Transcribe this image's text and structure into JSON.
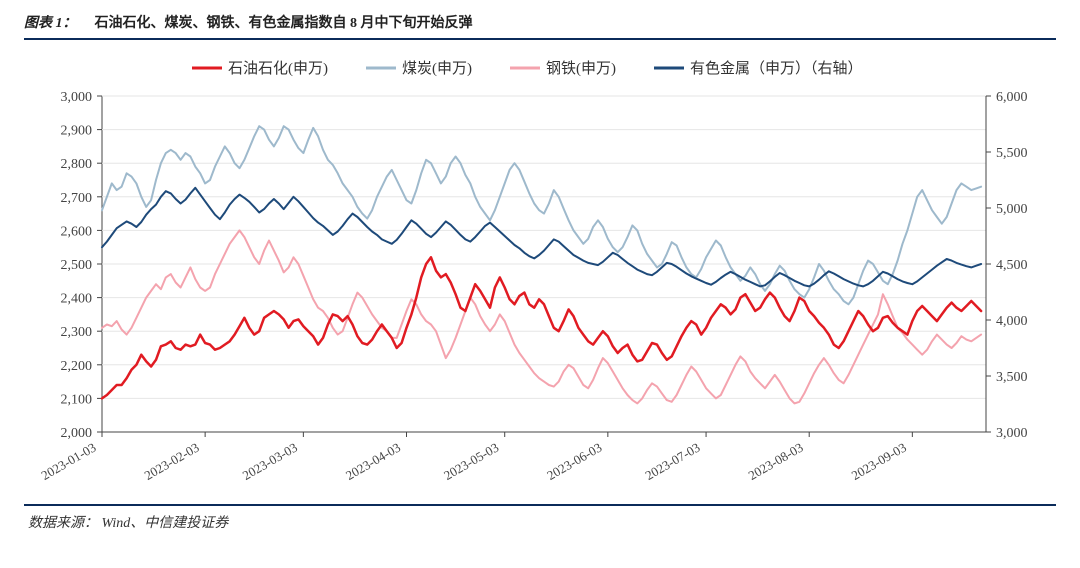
{
  "figure_label": "图表 1：",
  "title": "石油石化、煤炭、钢铁、有色金属指数自 8 月中下旬开始反弹",
  "source_label": "数据来源：",
  "source_value": "Wind、中信建投证券",
  "chart": {
    "type": "line",
    "background_color": "#ffffff",
    "grid_color": "#e6e6e6",
    "axis_color": "#444444",
    "title_fontsize": 16,
    "label_fontsize": 14,
    "xlim": [
      0,
      180
    ],
    "left_axis": {
      "min": 2000,
      "max": 3000,
      "step": 100,
      "label": ""
    },
    "right_axis": {
      "min": 3000,
      "max": 6000,
      "step": 500,
      "label": ""
    },
    "x_ticks": [
      {
        "i": 0,
        "label": "2023-01-03"
      },
      {
        "i": 21,
        "label": "2023-02-03"
      },
      {
        "i": 41,
        "label": "2023-03-03"
      },
      {
        "i": 62,
        "label": "2023-04-03"
      },
      {
        "i": 82,
        "label": "2023-05-03"
      },
      {
        "i": 103,
        "label": "2023-06-03"
      },
      {
        "i": 123,
        "label": "2023-07-03"
      },
      {
        "i": 144,
        "label": "2023-08-03"
      },
      {
        "i": 165,
        "label": "2023-09-03"
      }
    ],
    "legend": {
      "position": "top-center",
      "items": [
        {
          "key": "petro",
          "label": "石油石化(申万)"
        },
        {
          "key": "coal",
          "label": "煤炭(申万)"
        },
        {
          "key": "steel",
          "label": "钢铁(申万)"
        },
        {
          "key": "nfm",
          "label": "有色金属（申万）（右轴）"
        }
      ]
    },
    "series": {
      "petro": {
        "name": "石油石化(申万)",
        "axis": "left",
        "color": "#e11b22",
        "line_width": 2.5,
        "values": [
          2100,
          2110,
          2125,
          2140,
          2140,
          2160,
          2185,
          2200,
          2230,
          2210,
          2195,
          2215,
          2255,
          2260,
          2270,
          2250,
          2245,
          2260,
          2255,
          2260,
          2290,
          2265,
          2260,
          2245,
          2250,
          2260,
          2270,
          2290,
          2315,
          2340,
          2310,
          2290,
          2300,
          2340,
          2350,
          2360,
          2350,
          2335,
          2310,
          2330,
          2335,
          2315,
          2300,
          2285,
          2260,
          2280,
          2320,
          2350,
          2345,
          2330,
          2345,
          2320,
          2285,
          2265,
          2260,
          2275,
          2300,
          2320,
          2300,
          2280,
          2250,
          2265,
          2310,
          2350,
          2400,
          2460,
          2500,
          2520,
          2480,
          2460,
          2470,
          2445,
          2410,
          2370,
          2360,
          2400,
          2440,
          2420,
          2395,
          2370,
          2430,
          2460,
          2430,
          2395,
          2380,
          2405,
          2415,
          2380,
          2370,
          2395,
          2380,
          2345,
          2310,
          2300,
          2330,
          2365,
          2345,
          2310,
          2290,
          2270,
          2260,
          2280,
          2300,
          2285,
          2255,
          2235,
          2250,
          2260,
          2230,
          2210,
          2215,
          2240,
          2265,
          2260,
          2235,
          2215,
          2225,
          2255,
          2285,
          2310,
          2330,
          2320,
          2290,
          2310,
          2340,
          2360,
          2380,
          2370,
          2350,
          2365,
          2400,
          2410,
          2385,
          2360,
          2370,
          2395,
          2415,
          2400,
          2370,
          2345,
          2330,
          2360,
          2400,
          2390,
          2360,
          2345,
          2325,
          2310,
          2290,
          2260,
          2250,
          2270,
          2300,
          2330,
          2360,
          2345,
          2320,
          2300,
          2310,
          2340,
          2345,
          2325,
          2310,
          2300,
          2290,
          2330,
          2360,
          2375,
          2360,
          2345,
          2330,
          2350,
          2370,
          2385,
          2370,
          2360,
          2375,
          2390,
          2375,
          2360
        ]
      },
      "coal": {
        "name": "煤炭(申万)",
        "axis": "left",
        "color": "#9eb9cc",
        "line_width": 2.0,
        "values": [
          2660,
          2700,
          2740,
          2720,
          2730,
          2770,
          2760,
          2740,
          2700,
          2670,
          2690,
          2750,
          2800,
          2830,
          2840,
          2830,
          2810,
          2830,
          2820,
          2790,
          2770,
          2740,
          2750,
          2790,
          2820,
          2850,
          2830,
          2800,
          2785,
          2810,
          2845,
          2880,
          2910,
          2900,
          2870,
          2850,
          2875,
          2910,
          2900,
          2870,
          2845,
          2830,
          2870,
          2905,
          2880,
          2840,
          2810,
          2795,
          2770,
          2740,
          2720,
          2700,
          2670,
          2650,
          2635,
          2660,
          2700,
          2730,
          2760,
          2780,
          2750,
          2720,
          2690,
          2680,
          2720,
          2770,
          2810,
          2800,
          2770,
          2740,
          2760,
          2800,
          2820,
          2800,
          2765,
          2740,
          2700,
          2670,
          2650,
          2630,
          2660,
          2700,
          2740,
          2780,
          2800,
          2780,
          2745,
          2710,
          2680,
          2660,
          2650,
          2680,
          2720,
          2700,
          2665,
          2630,
          2600,
          2580,
          2560,
          2575,
          2610,
          2630,
          2610,
          2575,
          2550,
          2535,
          2550,
          2580,
          2615,
          2600,
          2560,
          2530,
          2510,
          2490,
          2500,
          2530,
          2565,
          2555,
          2520,
          2490,
          2470,
          2460,
          2485,
          2520,
          2545,
          2570,
          2555,
          2520,
          2490,
          2470,
          2450,
          2465,
          2490,
          2470,
          2440,
          2420,
          2440,
          2470,
          2495,
          2480,
          2450,
          2425,
          2410,
          2400,
          2425,
          2460,
          2500,
          2480,
          2450,
          2425,
          2410,
          2390,
          2380,
          2400,
          2440,
          2480,
          2510,
          2500,
          2475,
          2450,
          2440,
          2470,
          2510,
          2560,
          2600,
          2650,
          2700,
          2720,
          2690,
          2660,
          2640,
          2620,
          2640,
          2680,
          2720,
          2740,
          2730,
          2720,
          2725,
          2730
        ]
      },
      "steel": {
        "name": "钢铁(申万)",
        "axis": "left",
        "color": "#f4a3ae",
        "line_width": 2.0,
        "values": [
          2310,
          2320,
          2315,
          2330,
          2305,
          2290,
          2310,
          2340,
          2370,
          2400,
          2420,
          2440,
          2425,
          2460,
          2470,
          2445,
          2430,
          2460,
          2490,
          2455,
          2430,
          2420,
          2430,
          2470,
          2500,
          2530,
          2560,
          2580,
          2600,
          2580,
          2550,
          2520,
          2500,
          2540,
          2570,
          2540,
          2510,
          2475,
          2490,
          2520,
          2500,
          2465,
          2430,
          2395,
          2370,
          2360,
          2340,
          2310,
          2290,
          2300,
          2340,
          2380,
          2415,
          2400,
          2375,
          2350,
          2330,
          2310,
          2300,
          2280,
          2280,
          2320,
          2360,
          2395,
          2380,
          2350,
          2330,
          2320,
          2300,
          2260,
          2220,
          2245,
          2280,
          2320,
          2360,
          2400,
          2380,
          2345,
          2320,
          2300,
          2320,
          2350,
          2330,
          2295,
          2260,
          2235,
          2215,
          2195,
          2175,
          2160,
          2150,
          2140,
          2135,
          2150,
          2180,
          2200,
          2190,
          2165,
          2140,
          2130,
          2155,
          2190,
          2220,
          2205,
          2180,
          2155,
          2130,
          2110,
          2095,
          2085,
          2100,
          2125,
          2145,
          2135,
          2115,
          2095,
          2090,
          2110,
          2140,
          2170,
          2195,
          2180,
          2155,
          2130,
          2115,
          2100,
          2110,
          2140,
          2170,
          2200,
          2225,
          2210,
          2180,
          2160,
          2145,
          2130,
          2150,
          2170,
          2150,
          2125,
          2100,
          2085,
          2090,
          2115,
          2145,
          2175,
          2200,
          2220,
          2200,
          2175,
          2155,
          2145,
          2170,
          2200,
          2230,
          2260,
          2290,
          2320,
          2350,
          2410,
          2380,
          2345,
          2310,
          2295,
          2275,
          2260,
          2245,
          2230,
          2245,
          2270,
          2290,
          2275,
          2260,
          2250,
          2265,
          2285,
          2275,
          2270,
          2280,
          2290
        ]
      },
      "nfm": {
        "name": "有色金属（申万）（右轴）",
        "axis": "right",
        "color": "#1e4a7a",
        "line_width": 2.0,
        "values": [
          4650,
          4700,
          4760,
          4820,
          4850,
          4880,
          4860,
          4830,
          4875,
          4940,
          4990,
          5030,
          5100,
          5150,
          5130,
          5080,
          5040,
          5075,
          5130,
          5180,
          5120,
          5060,
          5000,
          4940,
          4900,
          4960,
          5030,
          5080,
          5120,
          5090,
          5055,
          5010,
          4960,
          4990,
          5040,
          5080,
          5040,
          4990,
          5045,
          5100,
          5060,
          5010,
          4960,
          4910,
          4870,
          4840,
          4800,
          4760,
          4790,
          4840,
          4900,
          4950,
          4920,
          4875,
          4830,
          4790,
          4760,
          4720,
          4700,
          4680,
          4715,
          4770,
          4830,
          4890,
          4860,
          4815,
          4770,
          4740,
          4780,
          4830,
          4880,
          4850,
          4805,
          4760,
          4720,
          4700,
          4740,
          4790,
          4840,
          4870,
          4830,
          4790,
          4750,
          4710,
          4670,
          4640,
          4600,
          4570,
          4550,
          4580,
          4620,
          4670,
          4720,
          4700,
          4660,
          4620,
          4580,
          4555,
          4530,
          4510,
          4500,
          4490,
          4520,
          4560,
          4600,
          4580,
          4545,
          4510,
          4480,
          4450,
          4430,
          4410,
          4400,
          4430,
          4470,
          4510,
          4500,
          4475,
          4445,
          4415,
          4390,
          4370,
          4350,
          4330,
          4315,
          4340,
          4375,
          4405,
          4430,
          4410,
          4385,
          4360,
          4340,
          4320,
          4300,
          4310,
          4345,
          4385,
          4420,
          4400,
          4375,
          4350,
          4330,
          4310,
          4300,
          4325,
          4360,
          4400,
          4435,
          4415,
          4390,
          4365,
          4345,
          4325,
          4310,
          4300,
          4320,
          4350,
          4390,
          4430,
          4415,
          4390,
          4365,
          4345,
          4330,
          4320,
          4345,
          4380,
          4415,
          4450,
          4485,
          4515,
          4545,
          4530,
          4510,
          4495,
          4480,
          4470,
          4485,
          4500
        ]
      }
    }
  }
}
